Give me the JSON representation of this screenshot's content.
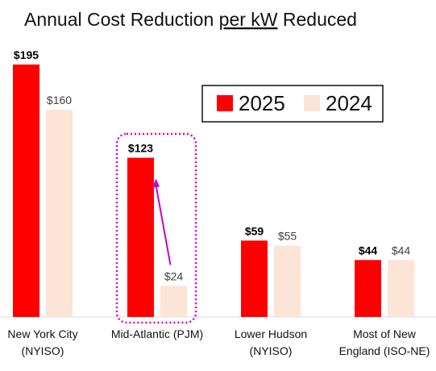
{
  "chart_data": {
    "type": "bar",
    "title_parts": [
      "Annual Cost Reduction ",
      "per kW",
      " Reduced"
    ],
    "categories": [
      [
        "New York City",
        "(NYISO)"
      ],
      [
        "Mid-Atlantic (PJM)"
      ],
      [
        "Lower Hudson",
        "(NYISO)"
      ],
      [
        "Most of New",
        "England (ISO-NE)"
      ]
    ],
    "series": [
      {
        "name": "2025",
        "values": [
          195,
          123,
          59,
          44
        ],
        "labels": [
          "$195",
          "$123",
          "$59",
          "$44"
        ],
        "color": "#ff0000"
      },
      {
        "name": "2024",
        "values": [
          160,
          24,
          55,
          44
        ],
        "labels": [
          "$160",
          "$24",
          "$55",
          "$44"
        ],
        "color": "#fce4d6"
      }
    ],
    "ylim": [
      0,
      195
    ],
    "grid": false,
    "legend_position": "top-right",
    "highlight": {
      "category_index": 1,
      "style": "dotted-box",
      "color": "#cc00cc",
      "arrow": "from 2024 bar up to 2025 bar"
    }
  }
}
